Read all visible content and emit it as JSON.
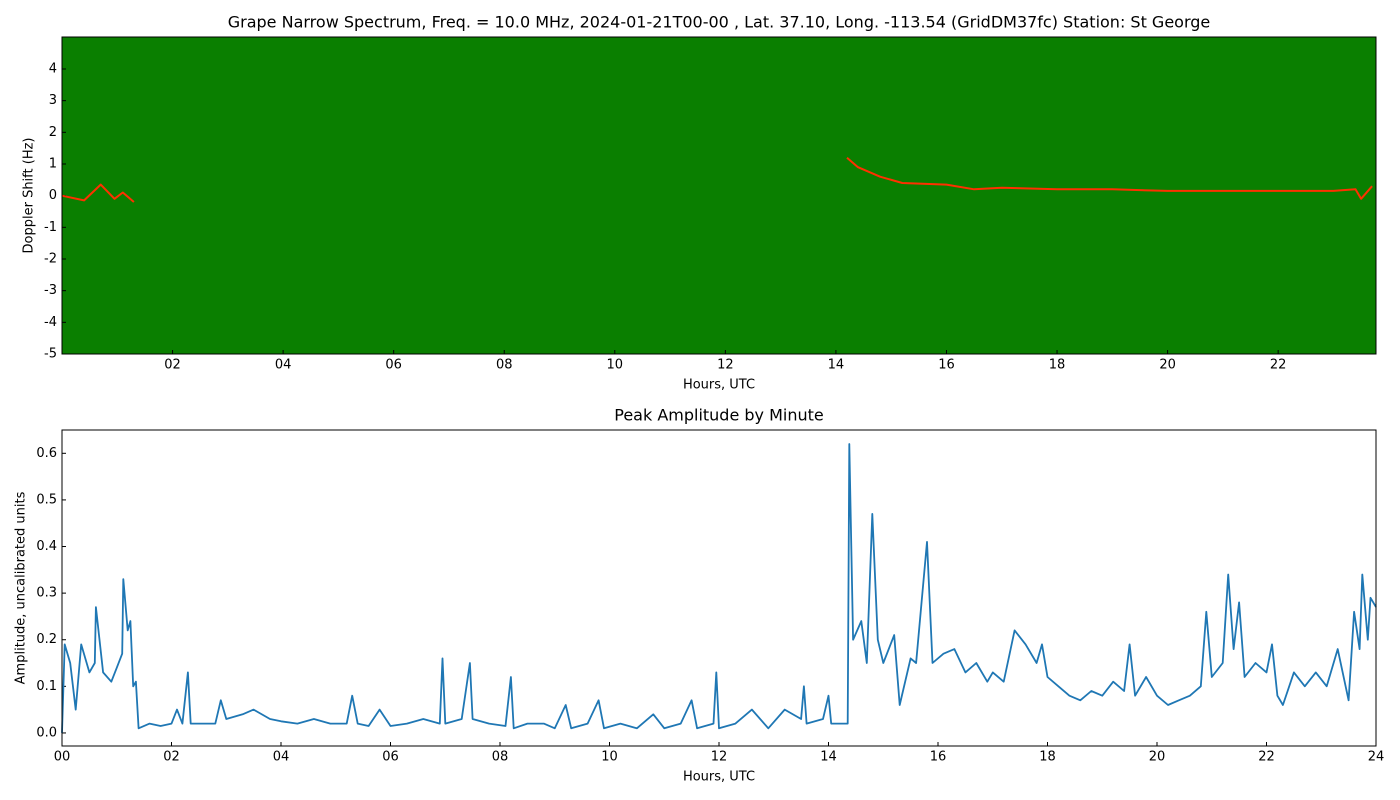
{
  "chart_data": [
    {
      "type": "spectrogram",
      "title": "Grape Narrow Spectrum, Freq. = 10.0 MHz, 2024-01-21T00-00 , Lat.  37.10, Long. -113.54 (GridDM37fc) Station: St George",
      "x_label": "Hours, UTC",
      "y_label": "Doppler Shift (Hz)",
      "background": "#0a7f00",
      "xlim": [
        0,
        23.77
      ],
      "ylim": [
        -5,
        5.01
      ],
      "xticks": [
        {
          "value": 2,
          "label": "02"
        },
        {
          "value": 4,
          "label": "04"
        },
        {
          "value": 6,
          "label": "06"
        },
        {
          "value": 8,
          "label": "08"
        },
        {
          "value": 10,
          "label": "10"
        },
        {
          "value": 12,
          "label": "12"
        },
        {
          "value": 14,
          "label": "14"
        },
        {
          "value": 16,
          "label": "16"
        },
        {
          "value": 18,
          "label": "18"
        },
        {
          "value": 20,
          "label": "20"
        },
        {
          "value": 22,
          "label": "22"
        }
      ],
      "yticks": [
        -5,
        -4,
        -3,
        -2,
        -1,
        0,
        1,
        2,
        3,
        4
      ],
      "series": [
        {
          "color": "#ff3000",
          "x": [
            0,
            0.4,
            0.7,
            0.95,
            1.1,
            1.3,
            7,
            14.2,
            14.4,
            14.8,
            15.2,
            16,
            16.5,
            17,
            18,
            19,
            20,
            21,
            22,
            23,
            23.4,
            23.5,
            23.7
          ],
          "values": [
            0,
            -0.15,
            0.35,
            -0.1,
            0.1,
            -0.2,
            null,
            1.2,
            0.9,
            0.6,
            0.4,
            0.35,
            0.2,
            0.25,
            0.2,
            0.2,
            0.15,
            0.15,
            0.15,
            0.15,
            0.2,
            -0.1,
            0.3
          ]
        }
      ]
    },
    {
      "type": "line",
      "title": "Peak Amplitude by Minute",
      "x_label": "Hours, UTC",
      "y_label": "Amplitude, uncalibrated units",
      "xlim": [
        0,
        24
      ],
      "ylim": [
        -0.028,
        0.65
      ],
      "xticks": [
        {
          "value": 0,
          "label": "00"
        },
        {
          "value": 2,
          "label": "02"
        },
        {
          "value": 4,
          "label": "04"
        },
        {
          "value": 6,
          "label": "06"
        },
        {
          "value": 8,
          "label": "08"
        },
        {
          "value": 10,
          "label": "10"
        },
        {
          "value": 12,
          "label": "12"
        },
        {
          "value": 14,
          "label": "14"
        },
        {
          "value": 16,
          "label": "16"
        },
        {
          "value": 18,
          "label": "18"
        },
        {
          "value": 20,
          "label": "20"
        },
        {
          "value": 22,
          "label": "22"
        },
        {
          "value": 24,
          "label": "24"
        }
      ],
      "yticks": [
        {
          "value": 0,
          "label": "0.0"
        },
        0.1,
        0.2,
        0.3,
        0.4,
        0.5,
        0.6
      ],
      "series": [
        {
          "color": "#1f77b4",
          "x": [
            0,
            0.05,
            0.15,
            0.25,
            0.35,
            0.5,
            0.6,
            0.62,
            0.75,
            0.9,
            1.0,
            1.1,
            1.12,
            1.2,
            1.25,
            1.3,
            1.35,
            1.4,
            1.6,
            1.8,
            2.0,
            2.1,
            2.2,
            2.3,
            2.35,
            2.6,
            2.8,
            2.9,
            3.0,
            3.3,
            3.5,
            3.8,
            4.0,
            4.3,
            4.6,
            4.9,
            5.2,
            5.3,
            5.4,
            5.6,
            5.8,
            6.0,
            6.3,
            6.6,
            6.9,
            6.95,
            7.0,
            7.3,
            7.45,
            7.5,
            7.8,
            8.1,
            8.2,
            8.25,
            8.5,
            8.8,
            9.0,
            9.2,
            9.3,
            9.6,
            9.8,
            9.9,
            10.2,
            10.5,
            10.8,
            11.0,
            11.3,
            11.5,
            11.6,
            11.9,
            11.95,
            12.0,
            12.3,
            12.6,
            12.9,
            13.2,
            13.5,
            13.55,
            13.6,
            13.9,
            14.0,
            14.05,
            14.35,
            14.38,
            14.45,
            14.6,
            14.7,
            14.8,
            14.9,
            15.0,
            15.2,
            15.3,
            15.5,
            15.6,
            15.8,
            15.9,
            16.1,
            16.3,
            16.5,
            16.7,
            16.9,
            17.0,
            17.2,
            17.4,
            17.6,
            17.8,
            17.9,
            18.0,
            18.2,
            18.4,
            18.6,
            18.8,
            19.0,
            19.2,
            19.4,
            19.5,
            19.6,
            19.8,
            20.0,
            20.2,
            20.4,
            20.6,
            20.8,
            20.9,
            21.0,
            21.2,
            21.3,
            21.4,
            21.5,
            21.6,
            21.8,
            22.0,
            22.1,
            22.2,
            22.3,
            22.5,
            22.7,
            22.9,
            23.1,
            23.3,
            23.5,
            23.6,
            23.7,
            23.75,
            23.85,
            23.9,
            24.0
          ],
          "values": [
            0.0,
            0.19,
            0.15,
            0.05,
            0.19,
            0.13,
            0.15,
            0.27,
            0.13,
            0.11,
            0.14,
            0.17,
            0.33,
            0.22,
            0.24,
            0.1,
            0.11,
            0.01,
            0.02,
            0.015,
            0.02,
            0.05,
            0.02,
            0.13,
            0.02,
            0.02,
            0.02,
            0.07,
            0.03,
            0.04,
            0.05,
            0.03,
            0.025,
            0.02,
            0.03,
            0.02,
            0.02,
            0.08,
            0.02,
            0.015,
            0.05,
            0.015,
            0.02,
            0.03,
            0.02,
            0.16,
            0.02,
            0.03,
            0.15,
            0.03,
            0.02,
            0.015,
            0.12,
            0.01,
            0.02,
            0.02,
            0.01,
            0.06,
            0.01,
            0.02,
            0.07,
            0.01,
            0.02,
            0.01,
            0.04,
            0.01,
            0.02,
            0.07,
            0.01,
            0.02,
            0.13,
            0.01,
            0.02,
            0.05,
            0.01,
            0.05,
            0.03,
            0.1,
            0.02,
            0.03,
            0.08,
            0.02,
            0.02,
            0.62,
            0.2,
            0.24,
            0.15,
            0.47,
            0.2,
            0.15,
            0.21,
            0.06,
            0.16,
            0.15,
            0.41,
            0.15,
            0.17,
            0.18,
            0.13,
            0.15,
            0.11,
            0.13,
            0.11,
            0.22,
            0.19,
            0.15,
            0.19,
            0.12,
            0.1,
            0.08,
            0.07,
            0.09,
            0.08,
            0.11,
            0.09,
            0.19,
            0.08,
            0.12,
            0.08,
            0.06,
            0.07,
            0.08,
            0.1,
            0.26,
            0.12,
            0.15,
            0.34,
            0.18,
            0.28,
            0.12,
            0.15,
            0.13,
            0.19,
            0.08,
            0.06,
            0.13,
            0.1,
            0.13,
            0.1,
            0.18,
            0.07,
            0.26,
            0.18,
            0.34,
            0.2,
            0.29,
            0.27
          ]
        }
      ]
    }
  ]
}
